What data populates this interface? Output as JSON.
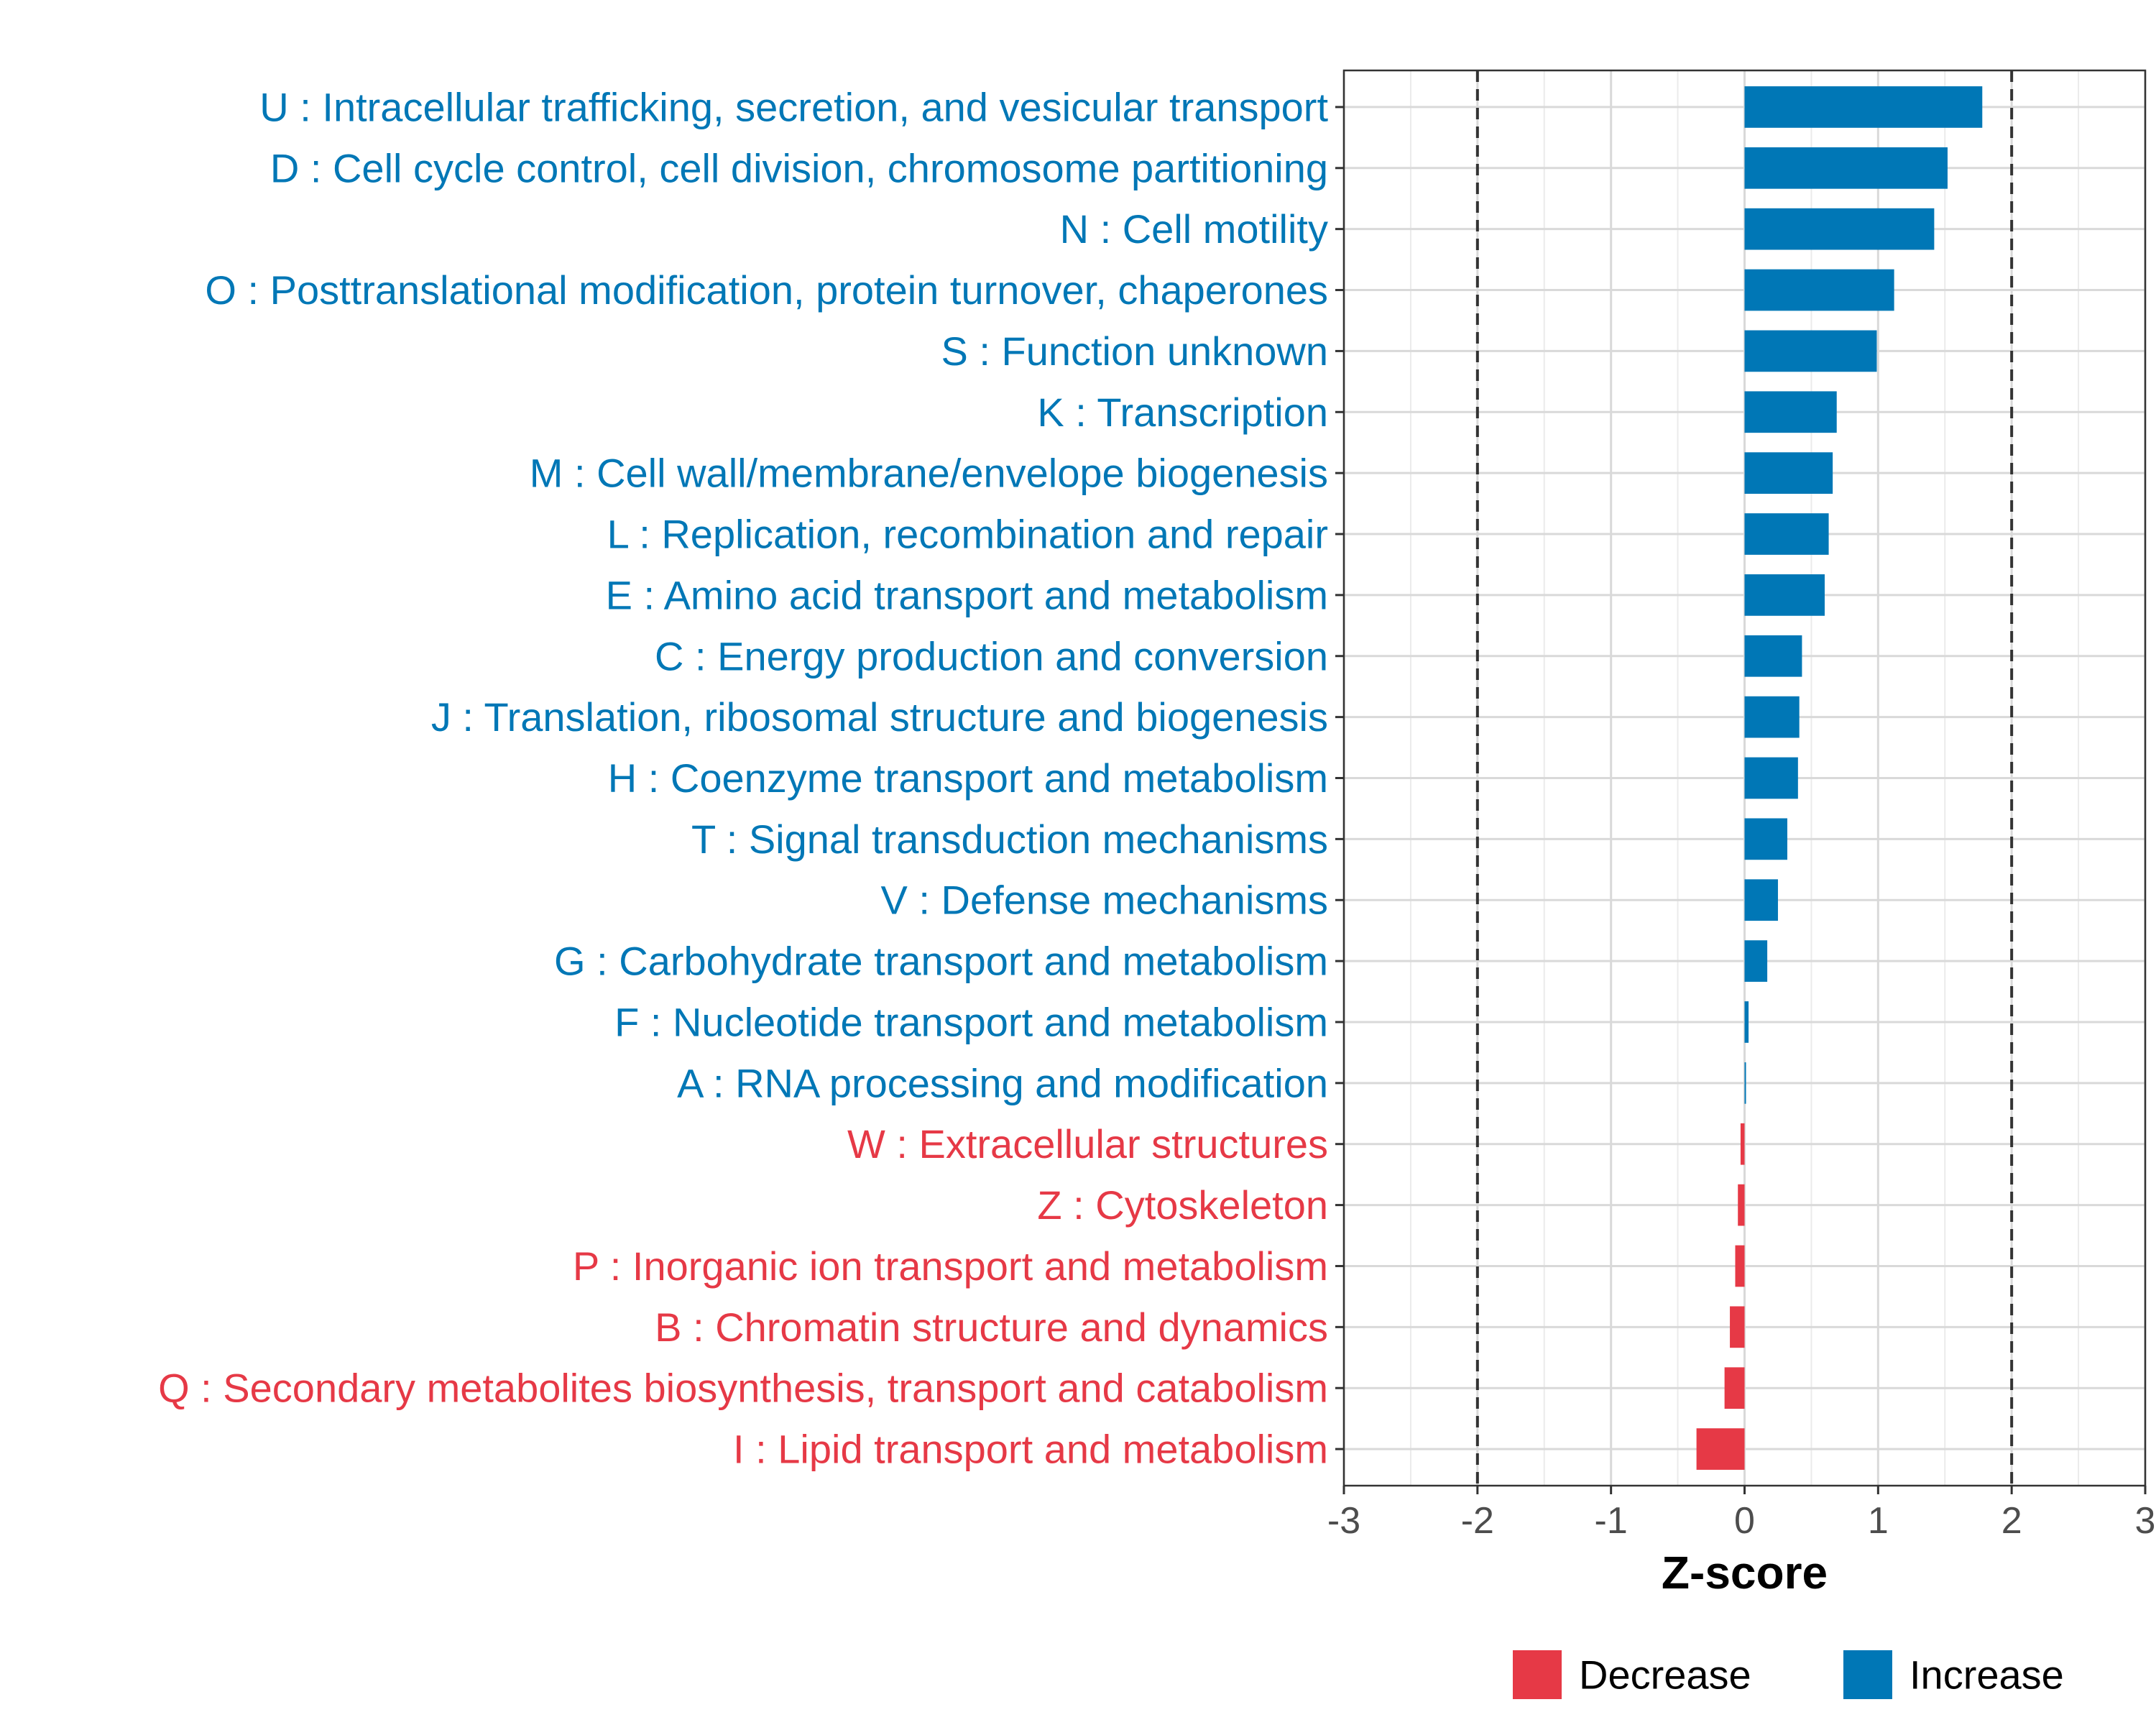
{
  "chart_data": {
    "type": "bar",
    "orientation": "horizontal",
    "xlabel": "Z-score",
    "ylabel": "",
    "xlim": [
      -3,
      3
    ],
    "xticks": [
      -3,
      -2,
      -1,
      0,
      1,
      2,
      3
    ],
    "reference_lines": [
      -2,
      2
    ],
    "grid": true,
    "legend_position": "bottom",
    "colors": {
      "Decrease": "#E63946",
      "Increase": "#0077B6"
    },
    "legend": [
      {
        "name": "Decrease",
        "color": "#E63946"
      },
      {
        "name": "Increase",
        "color": "#0077B6"
      }
    ],
    "categories": [
      "U : Intracellular trafficking, secretion, and vesicular transport",
      "D : Cell cycle control, cell division, chromosome partitioning",
      "N : Cell motility",
      "O : Posttranslational modification, protein turnover, chaperones",
      "S : Function unknown",
      "K : Transcription",
      "M : Cell wall/membrane/envelope biogenesis",
      "L : Replication, recombination and repair",
      "E : Amino acid transport and metabolism",
      "C : Energy production and conversion",
      "J : Translation, ribosomal structure and biogenesis",
      "H : Coenzyme transport and metabolism",
      "T : Signal transduction mechanisms",
      "V : Defense mechanisms",
      "G : Carbohydrate transport and metabolism",
      "F : Nucleotide transport and metabolism",
      "A : RNA processing and modification",
      "W : Extracellular structures",
      "Z : Cytoskeleton",
      "P : Inorganic ion transport and metabolism",
      "B : Chromatin structure and dynamics",
      "Q : Secondary metabolites biosynthesis, transport and catabolism",
      "I : Lipid transport and metabolism"
    ],
    "values": [
      1.78,
      1.52,
      1.42,
      1.12,
      0.99,
      0.69,
      0.66,
      0.63,
      0.6,
      0.43,
      0.41,
      0.4,
      0.32,
      0.25,
      0.17,
      0.03,
      0.01,
      -0.03,
      -0.05,
      -0.07,
      -0.11,
      -0.15,
      -0.36
    ],
    "direction": [
      "Increase",
      "Increase",
      "Increase",
      "Increase",
      "Increase",
      "Increase",
      "Increase",
      "Increase",
      "Increase",
      "Increase",
      "Increase",
      "Increase",
      "Increase",
      "Increase",
      "Increase",
      "Increase",
      "Increase",
      "Decrease",
      "Decrease",
      "Decrease",
      "Decrease",
      "Decrease",
      "Decrease"
    ]
  }
}
